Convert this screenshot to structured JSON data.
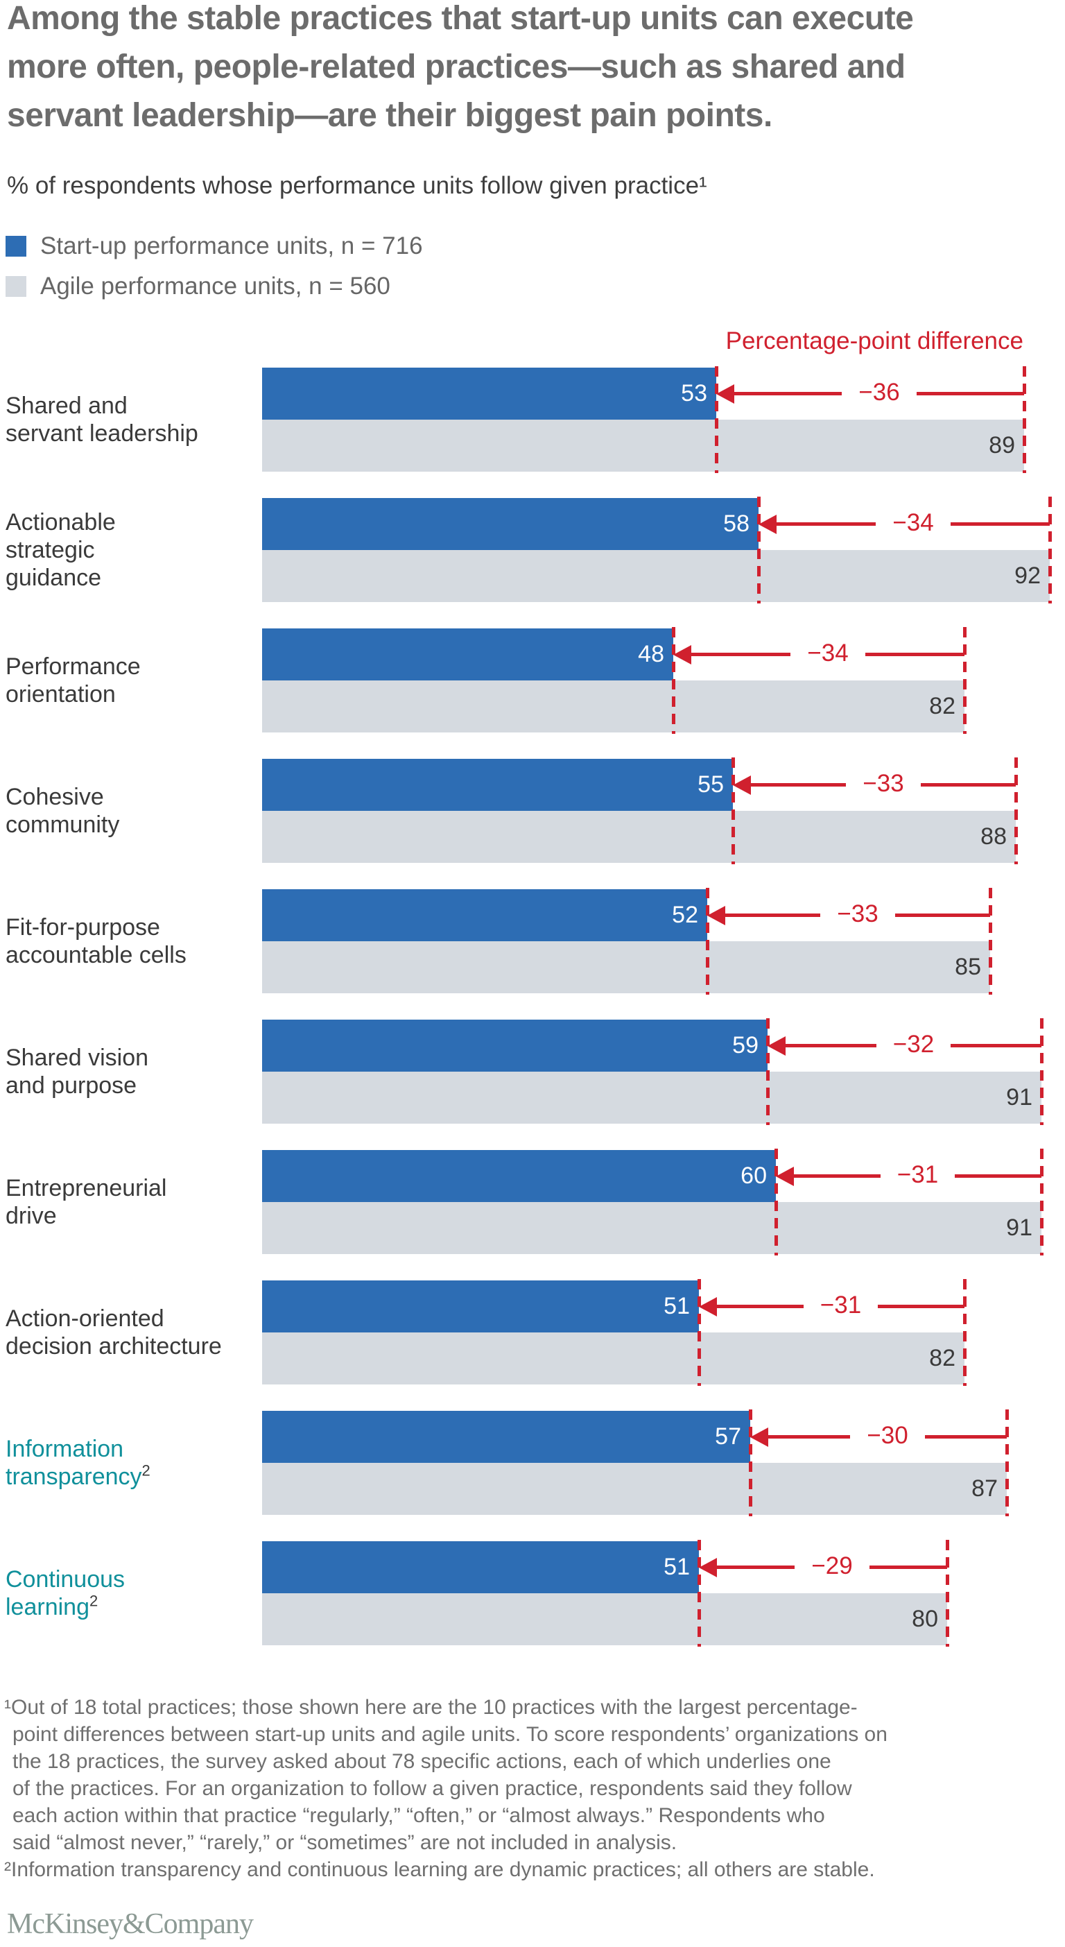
{
  "header": {
    "title_lines": [
      "Among the stable practices that start-up units can execute",
      "more often, people-related practices—such as shared and",
      "servant leadership—are their biggest pain points."
    ],
    "subtitle": "% of respondents whose performance units follow given practice¹"
  },
  "legend": [
    {
      "label": "Start-up performance units, n = 716",
      "series": "startup"
    },
    {
      "label": "Agile performance units, n = 560",
      "series": "agile"
    }
  ],
  "annotations": {
    "diff_heading": "Percentage-point difference"
  },
  "chart_data": {
    "type": "bar",
    "orientation": "horizontal",
    "title": "Among the stable practices that start-up units can execute more often, people-related practices—such as shared and servant leadership—are their biggest pain points.",
    "value_label": "% of respondents whose performance units follow given practice",
    "value_range": [
      0,
      100
    ],
    "gridlines": false,
    "legend_position": "top-left",
    "categories": [
      "Shared and servant leadership",
      "Actionable strategic guidance",
      "Performance orientation",
      "Cohesive community",
      "Fit-for-purpose accountable cells",
      "Shared vision and purpose",
      "Entrepreneurial drive",
      "Action-oriented decision architecture",
      "Information transparency",
      "Continuous learning"
    ],
    "series": [
      {
        "name": "Start-up performance units",
        "n": 716,
        "values": [
          53,
          58,
          48,
          55,
          52,
          59,
          60,
          51,
          57,
          51
        ]
      },
      {
        "name": "Agile performance units",
        "n": 560,
        "values": [
          89,
          92,
          82,
          88,
          85,
          91,
          91,
          82,
          87,
          80
        ]
      }
    ],
    "differences": [
      -36,
      -34,
      -34,
      -33,
      -33,
      -32,
      -31,
      -31,
      -30,
      -29
    ],
    "rows": [
      {
        "label_lines": [
          "Shared and",
          "servant leadership"
        ],
        "startup": 53,
        "agile": 89,
        "diff_label": "−36",
        "teal": false
      },
      {
        "label_lines": [
          "Actionable",
          "strategic",
          "guidance"
        ],
        "startup": 58,
        "agile": 92,
        "diff_label": "−34",
        "teal": false
      },
      {
        "label_lines": [
          "Performance",
          "orientation"
        ],
        "startup": 48,
        "agile": 82,
        "diff_label": "−34",
        "teal": false
      },
      {
        "label_lines": [
          "Cohesive",
          "community"
        ],
        "startup": 55,
        "agile": 88,
        "diff_label": "−33",
        "teal": false
      },
      {
        "label_lines": [
          "Fit-for-purpose",
          "accountable cells"
        ],
        "startup": 52,
        "agile": 85,
        "diff_label": "−33",
        "teal": false
      },
      {
        "label_lines": [
          "Shared vision",
          "and purpose"
        ],
        "startup": 59,
        "agile": 91,
        "diff_label": "−32",
        "teal": false
      },
      {
        "label_lines": [
          "Entrepreneurial",
          "drive"
        ],
        "startup": 60,
        "agile": 91,
        "diff_label": "−31",
        "teal": false
      },
      {
        "label_lines": [
          "Action-oriented",
          "decision architecture"
        ],
        "startup": 51,
        "agile": 82,
        "diff_label": "−31",
        "teal": false
      },
      {
        "label_lines": [
          "Information",
          "transparency"
        ],
        "sup": "2",
        "startup": 57,
        "agile": 87,
        "diff_label": "−30",
        "teal": true
      },
      {
        "label_lines": [
          "Continuous",
          "learning"
        ],
        "sup": "2",
        "startup": 51,
        "agile": 80,
        "diff_label": "−29",
        "teal": true
      }
    ]
  },
  "footnotes": {
    "lines": [
      "¹Out of 18 total practices; those shown here are the 10 practices with the largest percentage-",
      "point differences between start-up units and agile units. To score respondents’ organizations on",
      "the 18 practices, the survey asked about 78 specific actions, each of which underlies one",
      "of the practices. For an organization to follow a given practice, respondents said they follow",
      "each action within that practice “regularly,” “often,” or “almost always.” Respondents who",
      "said “almost never,” “rarely,” or “sometimes” are not included in analysis.",
      "²Information transparency and continuous learning are dynamic practices; all others are stable."
    ]
  },
  "logo": {
    "text": "McKinsey&Company"
  },
  "colors": {
    "startup_blue": "#2D6DB4",
    "agile_gray": "#D5DAE0",
    "difference_red": "#D0202E",
    "dynamic_practice_teal": "#10909B",
    "title_gray": "#6C6C6C",
    "logo_gray": "#8C9A94"
  }
}
